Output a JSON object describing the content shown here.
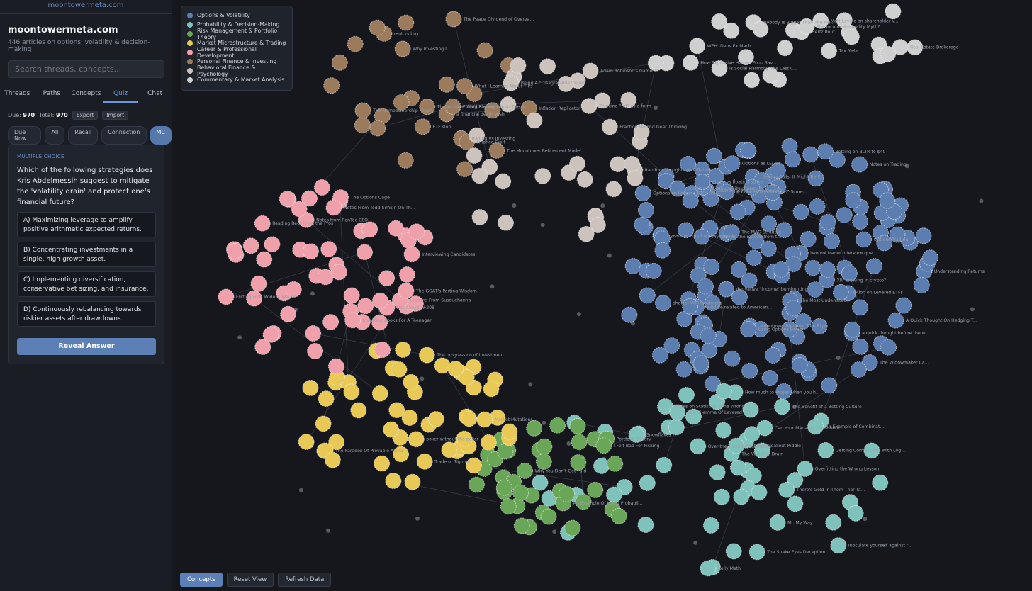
{
  "sidebar": {
    "site_link": "moontowermeta.com",
    "title": "moontowermeta.com",
    "subtitle": "446 articles on options, volatility & decision-making",
    "search_placeholder": "Search threads, concepts...",
    "tabs": [
      "Threads",
      "Paths",
      "Concepts",
      "Quiz",
      "Chat"
    ],
    "active_tab": "Quiz",
    "stats": {
      "due_label": "Due:",
      "due": "970",
      "total_label": "Total:",
      "total": "970",
      "export": "Export",
      "import": "Import"
    },
    "filters": [
      "Due Now",
      "All",
      "Recall",
      "Connection",
      "MC"
    ],
    "active_filter": "MC",
    "quiz": {
      "type": "MULTIPLE CHOICE",
      "question": "Which of the following strategies does Kris Abdelmessih suggest to mitigate the 'volatility drain' and protect one's financial future?",
      "options": [
        "A) Maximizing leverage to amplify positive arithmetic expected returns.",
        "B) Concentrating investments in a single, high-growth asset.",
        "C) Implementing diversification, conservative bet sizing, and insurance.",
        "D) Continuously rebalancing towards riskier assets after drawdowns."
      ],
      "reveal": "Reveal Answer"
    }
  },
  "legend": [
    {
      "label": "Options & Volatility",
      "color": "#5b7db0"
    },
    {
      "label": "Probability & Decision-Making",
      "color": "#7fc2bb"
    },
    {
      "label": "Risk Management & Portfolio Theory",
      "color": "#6aa657"
    },
    {
      "label": "Market Microstructure & Trading",
      "color": "#e9c955"
    },
    {
      "label": "Career & Professional Development",
      "color": "#f0a0aa"
    },
    {
      "label": "Personal Finance & Investing",
      "color": "#9c7a5c"
    },
    {
      "label": "Behavioral Finance & Psychology",
      "color": "#cdc3bd"
    },
    {
      "label": "Commentary & Market Analysis",
      "color": "#cfcfcf"
    }
  ],
  "bottom_buttons": [
    "Concepts",
    "Reset View",
    "Refresh Data"
  ],
  "active_bottom": "Concepts",
  "node_labels": [
    {
      "text": "Why Investing I...",
      "cat": 5
    },
    {
      "text": "The variable that balances t...",
      "cat": 5
    },
    {
      "text": "Being A \"Disagreeable\" Inves...",
      "cat": 6
    },
    {
      "text": "WFH: Deus Ex Mach...",
      "cat": 7
    },
    {
      "text": "Real Estate Brokerage",
      "cat": 7
    },
    {
      "text": "Tax Meta",
      "cat": 7
    },
    {
      "text": "The Income Inequality Myth?",
      "cat": 7
    },
    {
      "text": "Is Social Harmony The Last C...",
      "cat": 7
    },
    {
      "text": "Nobody Is Bigger Than The Ma...",
      "cat": 7
    },
    {
      "text": "Hertz Rout...",
      "cat": 7
    },
    {
      "text": "How Expensive Human Poop Sav...",
      "cat": 7
    },
    {
      "text": "Matt Levine on shareholder v...",
      "cat": 7
    },
    {
      "text": "Practice Second Gear Thinking",
      "cat": 6
    },
    {
      "text": "Thinking \"fat\" as a form",
      "cat": 6
    },
    {
      "text": "sticky vs floating strike",
      "cat": 0
    },
    {
      "text": "Getting Comfortable With Log...",
      "cat": 1
    },
    {
      "text": "Adam Robinson's Game To",
      "cat": 6
    },
    {
      "text": "Random Thoughts on Inflation",
      "cat": 6
    },
    {
      "text": "my read on the market from t...",
      "cat": 0
    },
    {
      "text": "Option on Levered ETFs",
      "cat": 0
    },
    {
      "text": "A Cleaner Dashboard: Z-Score...",
      "cat": 0
    },
    {
      "text": "Options Trading",
      "cat": 0
    },
    {
      "text": "derivative \"income\" bumhunting",
      "cat": 0
    },
    {
      "text": "shorter VRP lookbacks",
      "cat": 0
    },
    {
      "text": "a quick thought before the w...",
      "cat": 0
    },
    {
      "text": "Betting on BLTR to $40",
      "cat": 0
    },
    {
      "text": "Options as LEGOs",
      "cat": 0
    },
    {
      "text": "Options on Levered ETFs (Par...",
      "cat": 0
    },
    {
      "text": "Selling Calls: It Might Be P...",
      "cat": 0
    },
    {
      "text": "years worth of option educat...",
      "cat": 0
    },
    {
      "text": "Growth rate = 70% * (doublin...",
      "cat": 0
    },
    {
      "text": "Using Options Better",
      "cat": 0
    },
    {
      "text": "Moontower Binomial Tree Expl...",
      "cat": 0
    },
    {
      "text": "two vol trader interview que...",
      "cat": 0
    },
    {
      "text": "crossing the commodity chasm",
      "cat": 0
    },
    {
      "text": "The MAD Straddle",
      "cat": 0
    },
    {
      "text": "a riddle related to American...",
      "cat": 0
    },
    {
      "text": "A Quick Thought On Hedging T...",
      "cat": 0
    },
    {
      "text": "XIV brewing in crypto?",
      "cat": 0
    },
    {
      "text": "Notes on Statistics Done Wrong",
      "cat": 1
    },
    {
      "text": "Intraday Breakout Riddle",
      "cat": 1
    },
    {
      "text": "Inoculate yourself against \"...",
      "cat": 1
    },
    {
      "text": "Overfitting the Wrong Lesson",
      "cat": 1
    },
    {
      "text": "Mr. My Way",
      "cat": 1
    },
    {
      "text": "An Example Of Using Probabil...",
      "cat": 2
    },
    {
      "text": "How much to wager when you h...",
      "cat": 1
    },
    {
      "text": "There's Gold In Them Thar Ta...",
      "cat": 1
    },
    {
      "text": "The Volatility Drain",
      "cat": 1
    },
    {
      "text": "Market Mutations",
      "cat": 3
    },
    {
      "text": "Trade or Tighten'",
      "cat": 3
    },
    {
      "text": "The progression of investmen...",
      "cat": 3
    },
    {
      "text": "poker without the poker",
      "cat": 3
    },
    {
      "text": "The Paradox Of Provable Alpha",
      "cat": 3
    },
    {
      "text": "The GOAT's Parting Wisdom",
      "cat": 4
    },
    {
      "text": "Notes from RenTec CEO",
      "cat": 4
    },
    {
      "text": "Moontower #208",
      "cat": 4
    },
    {
      "text": "Reading Recs From the Pros",
      "cat": 4
    },
    {
      "text": "The Options Cage",
      "cat": 4
    },
    {
      "text": "Trading Vs Investing",
      "cat": 5
    },
    {
      "text": "a financial death wish",
      "cat": 5
    },
    {
      "text": "Pulling Earnings From The Di...",
      "cat": 5
    },
    {
      "text": "Inflation Replicator",
      "cat": 5
    },
    {
      "text": "ETF slop",
      "cat": 5
    },
    {
      "text": "The Peace Dividend of Overva...",
      "cat": 5
    },
    {
      "text": "The Moontower Retirement Model",
      "cat": 5
    },
    {
      "text": "The Homeownership Fetish",
      "cat": 5
    },
    {
      "text": "Finance Guilt",
      "cat": 5
    },
    {
      "text": "What I Learned About TIPs",
      "cat": 5
    },
    {
      "text": "rent vs buy",
      "cat": 5
    },
    {
      "text": "Investing Books For A Teenager",
      "cat": 4
    },
    {
      "text": "Interviewing Candidates",
      "cat": 4
    },
    {
      "text": "Flirting with Models: Wayne ...",
      "cat": 4
    },
    {
      "text": "Lessons From Susquehanna",
      "cat": 4
    },
    {
      "text": "Notes From Todd Simkin On Th...",
      "cat": 4
    },
    {
      "text": "The Most Underrated",
      "cat": 0
    },
    {
      "text": "The Widowmaker Ca...",
      "cat": 0
    },
    {
      "text": "Understanding Returns",
      "cat": 0
    },
    {
      "text": "Notes on Trading",
      "cat": 0
    },
    {
      "text": "The Dilemma Of Levered ETFs",
      "cat": 1
    },
    {
      "text": "Over-the-shoulder substance",
      "cat": 1
    },
    {
      "text": "The Snake Eyes Deception",
      "cat": 1
    },
    {
      "text": "I Felt Bad For Picking",
      "cat": 2
    },
    {
      "text": "Why You Don't Get Paid",
      "cat": 2
    },
    {
      "text": "Portfolio Theory",
      "cat": 2
    },
    {
      "text": "Kelly Math",
      "cat": 1
    },
    {
      "text": "The Benefit of a Betting Culture",
      "cat": 1
    },
    {
      "text": "Can Your Manager Solve Betti...",
      "cat": 1
    },
    {
      "text": "Snowflakes",
      "cat": 1
    },
    {
      "text": "An Example of Combinat...",
      "cat": 1
    }
  ]
}
